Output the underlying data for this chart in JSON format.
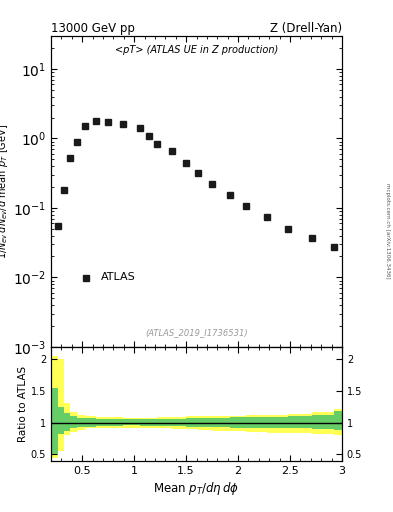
{
  "title_left": "13000 GeV pp",
  "title_right": "Z (Drell-Yan)",
  "main_label": "<pT> (ATLAS UE in Z production)",
  "atlas_label": "ATLAS",
  "dataset_label": "(ATLAS_2019_I1736531)",
  "side_label": "mcplots.cern.ch [arXiv:1306.3436]",
  "ylabel_main": "$1/N_{ev}\\,dN_{ev}/d$ mean $p_T$ [GeV]",
  "ylabel_ratio": "Ratio to ATLAS",
  "xlabel": "Mean $p_T/d\\eta\\,d\\phi$",
  "main_x": [
    0.27,
    0.32,
    0.38,
    0.45,
    0.53,
    0.63,
    0.75,
    0.89,
    1.06,
    1.14,
    1.22,
    1.36,
    1.5,
    1.61,
    1.75,
    1.92,
    2.08,
    2.28,
    2.48,
    2.71,
    2.92
  ],
  "main_y": [
    0.055,
    0.18,
    0.52,
    0.9,
    1.5,
    1.8,
    1.75,
    1.6,
    1.4,
    1.1,
    0.82,
    0.65,
    0.45,
    0.32,
    0.22,
    0.155,
    0.105,
    0.075,
    0.05,
    0.037,
    0.027
  ],
  "xlim": [
    0.2,
    3.0
  ],
  "ylim_main": [
    0.001,
    30
  ],
  "ylim_ratio": [
    0.4,
    2.2
  ],
  "ratio_yticks": [
    0.5,
    1.0,
    1.5,
    2.0
  ],
  "ratio_yticklabels": [
    "0.5",
    "1",
    "1.5",
    "2"
  ],
  "xticks": [
    0.5,
    1.0,
    1.5,
    2.0,
    2.5
  ],
  "xticklabels": [
    "0.5",
    "1",
    "1.5",
    "2",
    "2.5"
  ],
  "green_band_x": [
    0.2,
    0.27,
    0.32,
    0.38,
    0.45,
    0.53,
    0.63,
    0.75,
    0.89,
    1.06,
    1.22,
    1.36,
    1.5,
    1.61,
    1.75,
    1.92,
    2.08,
    2.28,
    2.48,
    2.71,
    2.92,
    3.0
  ],
  "green_band_lo": [
    0.5,
    0.82,
    0.87,
    0.91,
    0.93,
    0.94,
    0.95,
    0.955,
    0.96,
    0.955,
    0.95,
    0.945,
    0.94,
    0.935,
    0.93,
    0.925,
    0.92,
    0.915,
    0.91,
    0.9,
    0.88,
    0.88
  ],
  "green_band_hi": [
    1.55,
    1.25,
    1.15,
    1.1,
    1.08,
    1.07,
    1.065,
    1.06,
    1.055,
    1.055,
    1.06,
    1.065,
    1.07,
    1.075,
    1.08,
    1.085,
    1.09,
    1.095,
    1.1,
    1.12,
    1.18,
    1.18
  ],
  "yellow_band_x": [
    0.2,
    0.27,
    0.32,
    0.38,
    0.45,
    0.53,
    0.63,
    0.75,
    0.89,
    1.06,
    1.22,
    1.36,
    1.5,
    1.61,
    1.75,
    1.92,
    2.08,
    2.28,
    2.48,
    2.71,
    2.92,
    3.0
  ],
  "yellow_band_lo": [
    0.45,
    0.55,
    0.8,
    0.86,
    0.89,
    0.91,
    0.915,
    0.92,
    0.925,
    0.92,
    0.915,
    0.905,
    0.895,
    0.885,
    0.875,
    0.865,
    0.855,
    0.845,
    0.835,
    0.82,
    0.8,
    0.8
  ],
  "yellow_band_hi": [
    2.05,
    2.0,
    1.32,
    1.17,
    1.13,
    1.11,
    1.095,
    1.085,
    1.08,
    1.082,
    1.087,
    1.093,
    1.1,
    1.105,
    1.11,
    1.115,
    1.12,
    1.13,
    1.14,
    1.17,
    1.22,
    1.22
  ],
  "marker_color": "#1a1a1a",
  "green_color": "#66cc66",
  "yellow_color": "#ffff55",
  "bg_color": "#ffffff",
  "figsize": [
    3.93,
    5.12
  ],
  "dpi": 100
}
